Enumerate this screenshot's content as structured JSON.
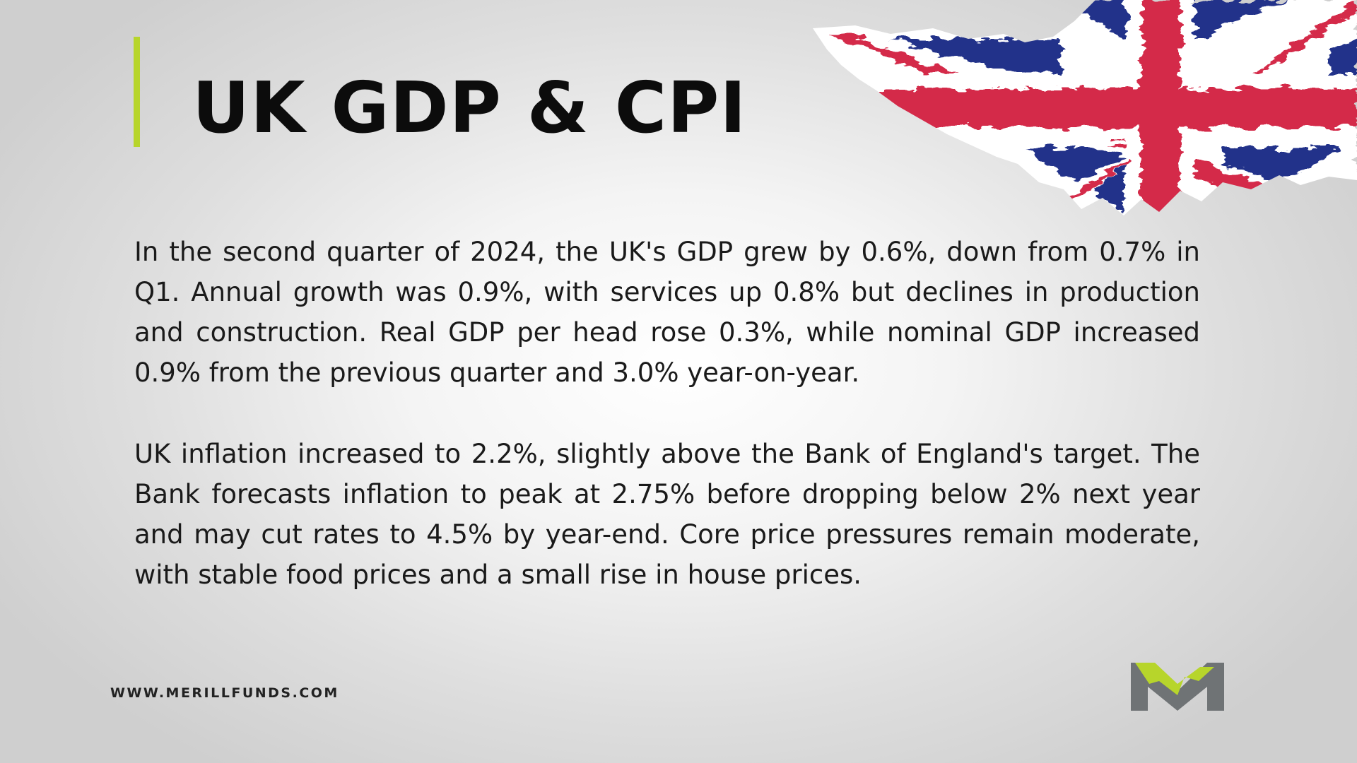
{
  "slide": {
    "title": "UK GDP & CPI",
    "paragraphs": [
      "In the second quarter of 2024, the UK's GDP grew by 0.6%, down from 0.7% in Q1. Annual growth was 0.9%, with services up 0.8% but declines in production and construction. Real GDP per head rose 0.3%, while nominal GDP increased 0.9% from the previous quarter and 3.0% year-on-year.",
      "UK inflation increased to 2.2%, slightly above the Bank of England's target. The Bank forecasts inflation to peak at 2.75% before dropping below 2% next year and may cut rates to 4.5% by year-end. Core price pressures remain moderate, with stable food prices and a small rise in house prices."
    ],
    "website": "WWW.MERILLFUNDS.COM"
  },
  "icons": {
    "flag": "union-jack-brush-flag",
    "logo": "merill-funds-m-logo"
  },
  "colors": {
    "accent": "#b7d52b",
    "flag_red": "#d42a48",
    "flag_blue": "#24338a",
    "logo_grey": "#6f7375",
    "logo_green": "#b7d52b",
    "title": "#0c0c0c"
  }
}
